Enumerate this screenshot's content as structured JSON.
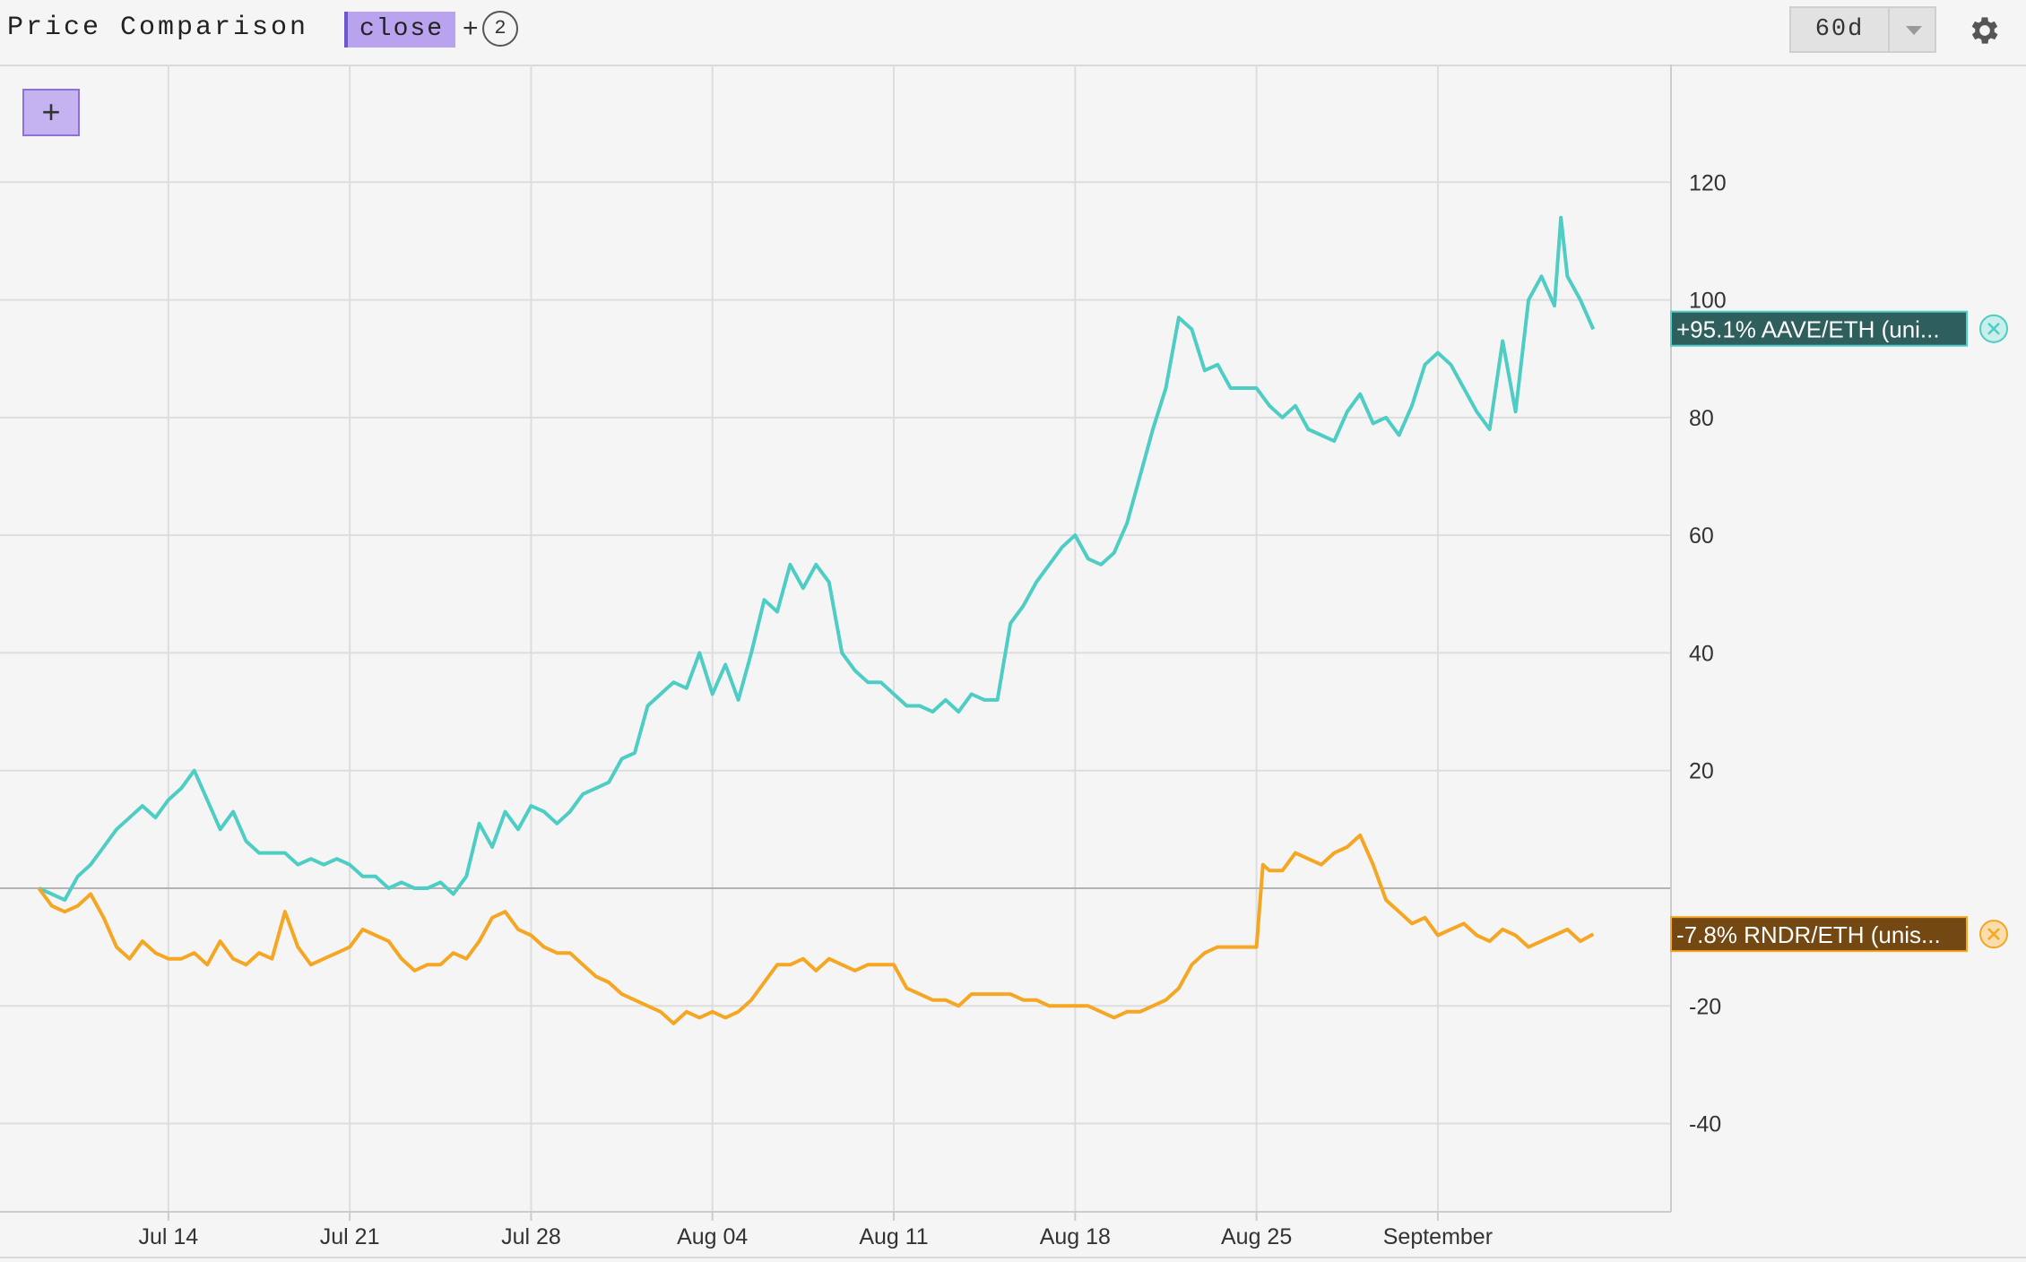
{
  "header": {
    "title": "Price Comparison",
    "field_tag": "close",
    "plus": "+",
    "series_count": "2",
    "range": "60d",
    "settings_icon": "gear-icon",
    "range_icon": "chevron-down-icon"
  },
  "toolbar": {
    "add_label": "+"
  },
  "colors": {
    "aave": "#4ecdc4",
    "rndr": "#f5a623",
    "aave_label_bg": "#2f5f5c",
    "rndr_label_bg": "#744813",
    "grid": "#dddddd",
    "axis_text": "#333333"
  },
  "chart_data": {
    "type": "line",
    "x_unit": "date",
    "x_range": [
      "2024-07-07T12:00",
      "2024-09-10T00:00"
    ],
    "ylim": [
      -55,
      140
    ],
    "y_ticks": [
      120,
      100,
      80,
      60,
      40,
      20,
      -20,
      -40
    ],
    "zero_line": 0,
    "x_ticks": [
      {
        "date": "2024-07-14",
        "label": "Jul 14"
      },
      {
        "date": "2024-07-21",
        "label": "Jul 21"
      },
      {
        "date": "2024-07-28",
        "label": "Jul 28"
      },
      {
        "date": "2024-08-04",
        "label": "Aug 04"
      },
      {
        "date": "2024-08-11",
        "label": "Aug 11"
      },
      {
        "date": "2024-08-18",
        "label": "Aug 18"
      },
      {
        "date": "2024-08-25",
        "label": "Aug 25"
      },
      {
        "date": "2024-09-01",
        "label": "September"
      }
    ],
    "grid": true,
    "series": [
      {
        "name": "AAVE/ETH",
        "label": "+95.1% AAVE/ETH (uni...",
        "final_value": 95.1,
        "points": [
          [
            "2024-07-09T00:00",
            0
          ],
          [
            "2024-07-09T12:00",
            -1
          ],
          [
            "2024-07-10T00:00",
            -2
          ],
          [
            "2024-07-10T12:00",
            2
          ],
          [
            "2024-07-11T00:00",
            4
          ],
          [
            "2024-07-11T12:00",
            7
          ],
          [
            "2024-07-12T00:00",
            10
          ],
          [
            "2024-07-12T12:00",
            12
          ],
          [
            "2024-07-13T00:00",
            14
          ],
          [
            "2024-07-13T12:00",
            12
          ],
          [
            "2024-07-14T00:00",
            15
          ],
          [
            "2024-07-14T12:00",
            17
          ],
          [
            "2024-07-15T00:00",
            20
          ],
          [
            "2024-07-15T12:00",
            15
          ],
          [
            "2024-07-16T00:00",
            10
          ],
          [
            "2024-07-16T12:00",
            13
          ],
          [
            "2024-07-17T00:00",
            8
          ],
          [
            "2024-07-17T12:00",
            6
          ],
          [
            "2024-07-18T00:00",
            6
          ],
          [
            "2024-07-18T12:00",
            6
          ],
          [
            "2024-07-19T00:00",
            4
          ],
          [
            "2024-07-19T12:00",
            5
          ],
          [
            "2024-07-20T00:00",
            4
          ],
          [
            "2024-07-20T12:00",
            5
          ],
          [
            "2024-07-21T00:00",
            4
          ],
          [
            "2024-07-21T12:00",
            2
          ],
          [
            "2024-07-22T00:00",
            2
          ],
          [
            "2024-07-22T12:00",
            0
          ],
          [
            "2024-07-23T00:00",
            1
          ],
          [
            "2024-07-23T12:00",
            0
          ],
          [
            "2024-07-24T00:00",
            0
          ],
          [
            "2024-07-24T12:00",
            1
          ],
          [
            "2024-07-25T00:00",
            -1
          ],
          [
            "2024-07-25T12:00",
            2
          ],
          [
            "2024-07-26T00:00",
            11
          ],
          [
            "2024-07-26T12:00",
            7
          ],
          [
            "2024-07-27T00:00",
            13
          ],
          [
            "2024-07-27T12:00",
            10
          ],
          [
            "2024-07-28T00:00",
            14
          ],
          [
            "2024-07-28T12:00",
            13
          ],
          [
            "2024-07-29T00:00",
            11
          ],
          [
            "2024-07-29T12:00",
            13
          ],
          [
            "2024-07-30T00:00",
            16
          ],
          [
            "2024-07-30T12:00",
            17
          ],
          [
            "2024-07-31T00:00",
            18
          ],
          [
            "2024-07-31T12:00",
            22
          ],
          [
            "2024-08-01T00:00",
            23
          ],
          [
            "2024-08-01T12:00",
            31
          ],
          [
            "2024-08-02T00:00",
            33
          ],
          [
            "2024-08-02T12:00",
            35
          ],
          [
            "2024-08-03T00:00",
            34
          ],
          [
            "2024-08-03T12:00",
            40
          ],
          [
            "2024-08-04T00:00",
            33
          ],
          [
            "2024-08-04T12:00",
            38
          ],
          [
            "2024-08-05T00:00",
            32
          ],
          [
            "2024-08-05T12:00",
            40
          ],
          [
            "2024-08-06T00:00",
            49
          ],
          [
            "2024-08-06T12:00",
            47
          ],
          [
            "2024-08-07T00:00",
            55
          ],
          [
            "2024-08-07T12:00",
            51
          ],
          [
            "2024-08-08T00:00",
            55
          ],
          [
            "2024-08-08T12:00",
            52
          ],
          [
            "2024-08-09T00:00",
            40
          ],
          [
            "2024-08-09T12:00",
            37
          ],
          [
            "2024-08-10T00:00",
            35
          ],
          [
            "2024-08-10T12:00",
            35
          ],
          [
            "2024-08-11T00:00",
            33
          ],
          [
            "2024-08-11T12:00",
            31
          ],
          [
            "2024-08-12T00:00",
            31
          ],
          [
            "2024-08-12T12:00",
            30
          ],
          [
            "2024-08-13T00:00",
            32
          ],
          [
            "2024-08-13T12:00",
            30
          ],
          [
            "2024-08-14T00:00",
            33
          ],
          [
            "2024-08-14T12:00",
            32
          ],
          [
            "2024-08-15T00:00",
            32
          ],
          [
            "2024-08-15T12:00",
            45
          ],
          [
            "2024-08-16T00:00",
            48
          ],
          [
            "2024-08-16T12:00",
            52
          ],
          [
            "2024-08-17T00:00",
            55
          ],
          [
            "2024-08-17T12:00",
            58
          ],
          [
            "2024-08-18T00:00",
            60
          ],
          [
            "2024-08-18T12:00",
            56
          ],
          [
            "2024-08-19T00:00",
            55
          ],
          [
            "2024-08-19T12:00",
            57
          ],
          [
            "2024-08-20T00:00",
            62
          ],
          [
            "2024-08-20T12:00",
            70
          ],
          [
            "2024-08-21T00:00",
            78
          ],
          [
            "2024-08-21T12:00",
            85
          ],
          [
            "2024-08-22T00:00",
            97
          ],
          [
            "2024-08-22T12:00",
            95
          ],
          [
            "2024-08-23T00:00",
            88
          ],
          [
            "2024-08-23T12:00",
            89
          ],
          [
            "2024-08-24T00:00",
            85
          ],
          [
            "2024-08-24T12:00",
            85
          ],
          [
            "2024-08-25T00:00",
            85
          ],
          [
            "2024-08-25T12:00",
            82
          ],
          [
            "2024-08-26T00:00",
            80
          ],
          [
            "2024-08-26T12:00",
            82
          ],
          [
            "2024-08-27T00:00",
            78
          ],
          [
            "2024-08-27T12:00",
            77
          ],
          [
            "2024-08-28T00:00",
            76
          ],
          [
            "2024-08-28T12:00",
            81
          ],
          [
            "2024-08-29T00:00",
            84
          ],
          [
            "2024-08-29T12:00",
            79
          ],
          [
            "2024-08-30T00:00",
            80
          ],
          [
            "2024-08-30T12:00",
            77
          ],
          [
            "2024-08-31T00:00",
            82
          ],
          [
            "2024-08-31T12:00",
            89
          ],
          [
            "2024-09-01T00:00",
            91
          ],
          [
            "2024-09-01T12:00",
            89
          ],
          [
            "2024-09-02T00:00",
            85
          ],
          [
            "2024-09-02T12:00",
            81
          ],
          [
            "2024-09-03T00:00",
            78
          ],
          [
            "2024-09-03T12:00",
            93
          ],
          [
            "2024-09-04T00:00",
            81
          ],
          [
            "2024-09-04T12:00",
            100
          ],
          [
            "2024-09-05T00:00",
            104
          ],
          [
            "2024-09-05T12:00",
            99
          ],
          [
            "2024-09-05T18:00",
            114
          ],
          [
            "2024-09-06T00:00",
            104
          ],
          [
            "2024-09-06T12:00",
            100
          ],
          [
            "2024-09-07T00:00",
            95
          ]
        ]
      },
      {
        "name": "RNDR/ETH",
        "label": "-7.8% RNDR/ETH (unis...",
        "final_value": -7.8,
        "points": [
          [
            "2024-07-09T00:00",
            0
          ],
          [
            "2024-07-09T12:00",
            -3
          ],
          [
            "2024-07-10T00:00",
            -4
          ],
          [
            "2024-07-10T12:00",
            -3
          ],
          [
            "2024-07-11T00:00",
            -1
          ],
          [
            "2024-07-11T12:00",
            -5
          ],
          [
            "2024-07-12T00:00",
            -10
          ],
          [
            "2024-07-12T12:00",
            -12
          ],
          [
            "2024-07-13T00:00",
            -9
          ],
          [
            "2024-07-13T12:00",
            -11
          ],
          [
            "2024-07-14T00:00",
            -12
          ],
          [
            "2024-07-14T12:00",
            -12
          ],
          [
            "2024-07-15T00:00",
            -11
          ],
          [
            "2024-07-15T12:00",
            -13
          ],
          [
            "2024-07-16T00:00",
            -9
          ],
          [
            "2024-07-16T12:00",
            -12
          ],
          [
            "2024-07-17T00:00",
            -13
          ],
          [
            "2024-07-17T12:00",
            -11
          ],
          [
            "2024-07-18T00:00",
            -12
          ],
          [
            "2024-07-18T12:00",
            -4
          ],
          [
            "2024-07-19T00:00",
            -10
          ],
          [
            "2024-07-19T12:00",
            -13
          ],
          [
            "2024-07-20T00:00",
            -12
          ],
          [
            "2024-07-20T12:00",
            -11
          ],
          [
            "2024-07-21T00:00",
            -10
          ],
          [
            "2024-07-21T12:00",
            -7
          ],
          [
            "2024-07-22T00:00",
            -8
          ],
          [
            "2024-07-22T12:00",
            -9
          ],
          [
            "2024-07-23T00:00",
            -12
          ],
          [
            "2024-07-23T12:00",
            -14
          ],
          [
            "2024-07-24T00:00",
            -13
          ],
          [
            "2024-07-24T12:00",
            -13
          ],
          [
            "2024-07-25T00:00",
            -11
          ],
          [
            "2024-07-25T12:00",
            -12
          ],
          [
            "2024-07-26T00:00",
            -9
          ],
          [
            "2024-07-26T12:00",
            -5
          ],
          [
            "2024-07-27T00:00",
            -4
          ],
          [
            "2024-07-27T12:00",
            -7
          ],
          [
            "2024-07-28T00:00",
            -8
          ],
          [
            "2024-07-28T12:00",
            -10
          ],
          [
            "2024-07-29T00:00",
            -11
          ],
          [
            "2024-07-29T12:00",
            -11
          ],
          [
            "2024-07-30T00:00",
            -13
          ],
          [
            "2024-07-30T12:00",
            -15
          ],
          [
            "2024-07-31T00:00",
            -16
          ],
          [
            "2024-07-31T12:00",
            -18
          ],
          [
            "2024-08-01T00:00",
            -19
          ],
          [
            "2024-08-01T12:00",
            -20
          ],
          [
            "2024-08-02T00:00",
            -21
          ],
          [
            "2024-08-02T12:00",
            -23
          ],
          [
            "2024-08-03T00:00",
            -21
          ],
          [
            "2024-08-03T12:00",
            -22
          ],
          [
            "2024-08-04T00:00",
            -21
          ],
          [
            "2024-08-04T12:00",
            -22
          ],
          [
            "2024-08-05T00:00",
            -21
          ],
          [
            "2024-08-05T12:00",
            -19
          ],
          [
            "2024-08-06T00:00",
            -16
          ],
          [
            "2024-08-06T12:00",
            -13
          ],
          [
            "2024-08-07T00:00",
            -13
          ],
          [
            "2024-08-07T12:00",
            -12
          ],
          [
            "2024-08-08T00:00",
            -14
          ],
          [
            "2024-08-08T12:00",
            -12
          ],
          [
            "2024-08-09T00:00",
            -13
          ],
          [
            "2024-08-09T12:00",
            -14
          ],
          [
            "2024-08-10T00:00",
            -13
          ],
          [
            "2024-08-10T12:00",
            -13
          ],
          [
            "2024-08-11T00:00",
            -13
          ],
          [
            "2024-08-11T12:00",
            -17
          ],
          [
            "2024-08-12T00:00",
            -18
          ],
          [
            "2024-08-12T12:00",
            -19
          ],
          [
            "2024-08-13T00:00",
            -19
          ],
          [
            "2024-08-13T12:00",
            -20
          ],
          [
            "2024-08-14T00:00",
            -18
          ],
          [
            "2024-08-14T12:00",
            -18
          ],
          [
            "2024-08-15T00:00",
            -18
          ],
          [
            "2024-08-15T12:00",
            -18
          ],
          [
            "2024-08-16T00:00",
            -19
          ],
          [
            "2024-08-16T12:00",
            -19
          ],
          [
            "2024-08-17T00:00",
            -20
          ],
          [
            "2024-08-17T12:00",
            -20
          ],
          [
            "2024-08-18T00:00",
            -20
          ],
          [
            "2024-08-18T12:00",
            -20
          ],
          [
            "2024-08-19T00:00",
            -21
          ],
          [
            "2024-08-19T12:00",
            -22
          ],
          [
            "2024-08-20T00:00",
            -21
          ],
          [
            "2024-08-20T12:00",
            -21
          ],
          [
            "2024-08-21T00:00",
            -20
          ],
          [
            "2024-08-21T12:00",
            -19
          ],
          [
            "2024-08-22T00:00",
            -17
          ],
          [
            "2024-08-22T12:00",
            -13
          ],
          [
            "2024-08-23T00:00",
            -11
          ],
          [
            "2024-08-23T12:00",
            -10
          ],
          [
            "2024-08-24T00:00",
            -10
          ],
          [
            "2024-08-24T12:00",
            -10
          ],
          [
            "2024-08-25T00:00",
            -10
          ],
          [
            "2024-08-25T06:00",
            4
          ],
          [
            "2024-08-25T12:00",
            3
          ],
          [
            "2024-08-26T00:00",
            3
          ],
          [
            "2024-08-26T12:00",
            6
          ],
          [
            "2024-08-27T00:00",
            5
          ],
          [
            "2024-08-27T12:00",
            4
          ],
          [
            "2024-08-28T00:00",
            6
          ],
          [
            "2024-08-28T12:00",
            7
          ],
          [
            "2024-08-29T00:00",
            9
          ],
          [
            "2024-08-29T12:00",
            4
          ],
          [
            "2024-08-30T00:00",
            -2
          ],
          [
            "2024-08-30T12:00",
            -4
          ],
          [
            "2024-08-31T00:00",
            -6
          ],
          [
            "2024-08-31T12:00",
            -5
          ],
          [
            "2024-09-01T00:00",
            -8
          ],
          [
            "2024-09-01T12:00",
            -7
          ],
          [
            "2024-09-02T00:00",
            -6
          ],
          [
            "2024-09-02T12:00",
            -8
          ],
          [
            "2024-09-03T00:00",
            -9
          ],
          [
            "2024-09-03T12:00",
            -7
          ],
          [
            "2024-09-04T00:00",
            -8
          ],
          [
            "2024-09-04T12:00",
            -10
          ],
          [
            "2024-09-05T00:00",
            -9
          ],
          [
            "2024-09-05T12:00",
            -8
          ],
          [
            "2024-09-06T00:00",
            -7
          ],
          [
            "2024-09-06T12:00",
            -9
          ],
          [
            "2024-09-07T00:00",
            -7.8
          ]
        ]
      }
    ]
  }
}
